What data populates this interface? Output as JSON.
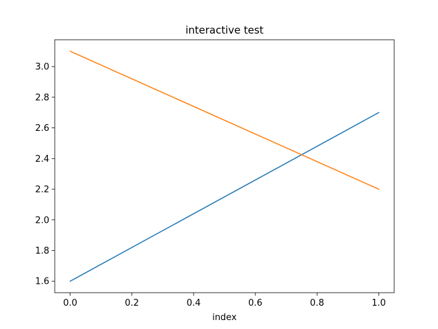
{
  "chart_data": {
    "type": "line",
    "title": "interactive test",
    "xlabel": "index",
    "ylabel": "",
    "x": [
      0,
      1
    ],
    "xlim": [
      -0.05,
      1.05
    ],
    "ylim": [
      1.525,
      3.175
    ],
    "xticks": [
      0.0,
      0.2,
      0.4,
      0.6,
      0.8,
      1.0
    ],
    "xtick_labels": [
      "0.0",
      "0.2",
      "0.4",
      "0.6",
      "0.8",
      "1.0"
    ],
    "yticks": [
      1.6,
      1.8,
      2.0,
      2.2,
      2.4,
      2.6,
      2.8,
      3.0
    ],
    "ytick_labels": [
      "1.6",
      "1.8",
      "2.0",
      "2.2",
      "2.4",
      "2.6",
      "2.8",
      "3.0"
    ],
    "grid": false,
    "legend": "none",
    "series": [
      {
        "values": [
          1.6,
          2.7
        ],
        "color": "#1f77b4"
      },
      {
        "values": [
          3.1,
          2.2
        ],
        "color": "#ff7f0e"
      }
    ]
  }
}
